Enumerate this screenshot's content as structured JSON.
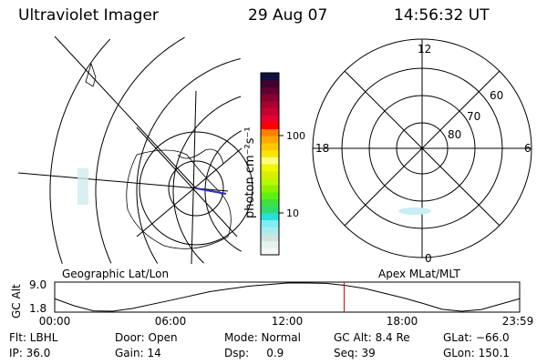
{
  "header": {
    "instrument": "Ultraviolet Imager",
    "date": "29 Aug 07",
    "time": "14:56:32 UT"
  },
  "colorbar": {
    "unit_label": "photon cm⁻²s⁻¹",
    "tick_labels": [
      "100",
      "10"
    ],
    "colors": [
      "#f4f8f6",
      "#e6f2ec",
      "#d0e4e0",
      "#a8ecf0",
      "#80eef0",
      "#28e0d8",
      "#30dc70",
      "#40e040",
      "#60f010",
      "#90f000",
      "#b8f800",
      "#d8f000",
      "#f0f800",
      "#fcfc80",
      "#ffe400",
      "#ffc800",
      "#ffa800",
      "#ff8000",
      "#ff0000",
      "#e80030",
      "#c80030",
      "#a80030",
      "#880030",
      "#600030",
      "#400030",
      "#101040"
    ]
  },
  "left_panel": {
    "label": "Geographic Lat/Lon"
  },
  "right_panel": {
    "label": "Apex MLat/MLT",
    "mlt_labels": {
      "top": "12",
      "bottom": "0",
      "left": "18",
      "right": "6"
    },
    "lat_labels": [
      "60",
      "70",
      "80"
    ]
  },
  "chart_data": {
    "type": "line",
    "title": "",
    "ylabel": "GC Alt",
    "y_ticks": [
      "9.0",
      "1.8"
    ],
    "ylim": [
      1.8,
      9.0
    ],
    "x_ticks": [
      "00:00",
      "06:00",
      "12:00",
      "18:00",
      "23:59"
    ],
    "xlim_hours": [
      0,
      24
    ],
    "x_hours": [
      0,
      1,
      2,
      3,
      4,
      6,
      8,
      10,
      12,
      13,
      14,
      15,
      16,
      18,
      19,
      20,
      21,
      22,
      23,
      24
    ],
    "values": [
      5.0,
      3.2,
      1.9,
      1.8,
      2.5,
      4.6,
      6.8,
      8.2,
      9.0,
      9.0,
      8.9,
      8.4,
      7.6,
      5.2,
      3.8,
      2.3,
      1.8,
      2.2,
      3.6,
      5.0
    ],
    "current_time_hours": 14.94,
    "current_marker_color": "#dd0000"
  },
  "info": {
    "row1": [
      "Flt: LBHL",
      "Door: Open",
      "Mode: Normal",
      "GC Alt: 8.4 Re",
      "GLat: −66.0"
    ],
    "row2": [
      "IP: 36.0",
      "Gain: 14",
      "Dsp:     0.9",
      "Seq: 39",
      "GLon: 150.1"
    ]
  }
}
